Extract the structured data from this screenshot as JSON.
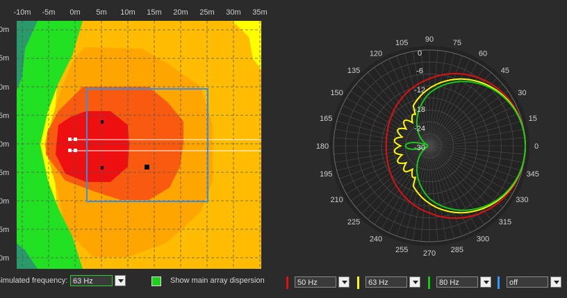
{
  "heatmap": {
    "x_ticks": [
      "-10m",
      "-5m",
      "0m",
      "5m",
      "10m",
      "15m",
      "20m",
      "25m",
      "30m",
      "35m"
    ],
    "y_ticks": [
      "0m",
      "5m",
      "0m",
      "5m",
      "0m",
      "5m",
      "0m",
      "5m",
      "0m"
    ],
    "colors": {
      "red": "#ee1010",
      "orange_red": "#f85a10",
      "orange": "#ffa500",
      "light_orange": "#ffbc00",
      "yellow": "#ffff00",
      "green": "#22e022",
      "teal": "#2a9a6a"
    }
  },
  "polar": {
    "angle_labels": [
      "90",
      "75",
      "60",
      "45",
      "30",
      "15",
      "0",
      "345",
      "330",
      "315",
      "300",
      "285",
      "270",
      "255",
      "240",
      "225",
      "210",
      "195",
      "180",
      "165",
      "150",
      "135",
      "120",
      "105"
    ],
    "db_labels": [
      "0",
      "-6",
      "-12",
      "-18",
      "-24",
      "-30"
    ],
    "series": [
      {
        "color": "#e01010"
      },
      {
        "color": "#ffff00"
      },
      {
        "color": "#18c818"
      }
    ]
  },
  "controls": {
    "sim_label": "Simulated frequency:",
    "sim_value": "63 Hz",
    "show_label": "Show main array dispersion",
    "freq1": "50 Hz",
    "freq2": "63 Hz",
    "freq3": "80 Hz",
    "freq4": "off",
    "swatch_colors": [
      "#e01010",
      "#ffff00",
      "#18c818",
      "#3399ff"
    ]
  }
}
